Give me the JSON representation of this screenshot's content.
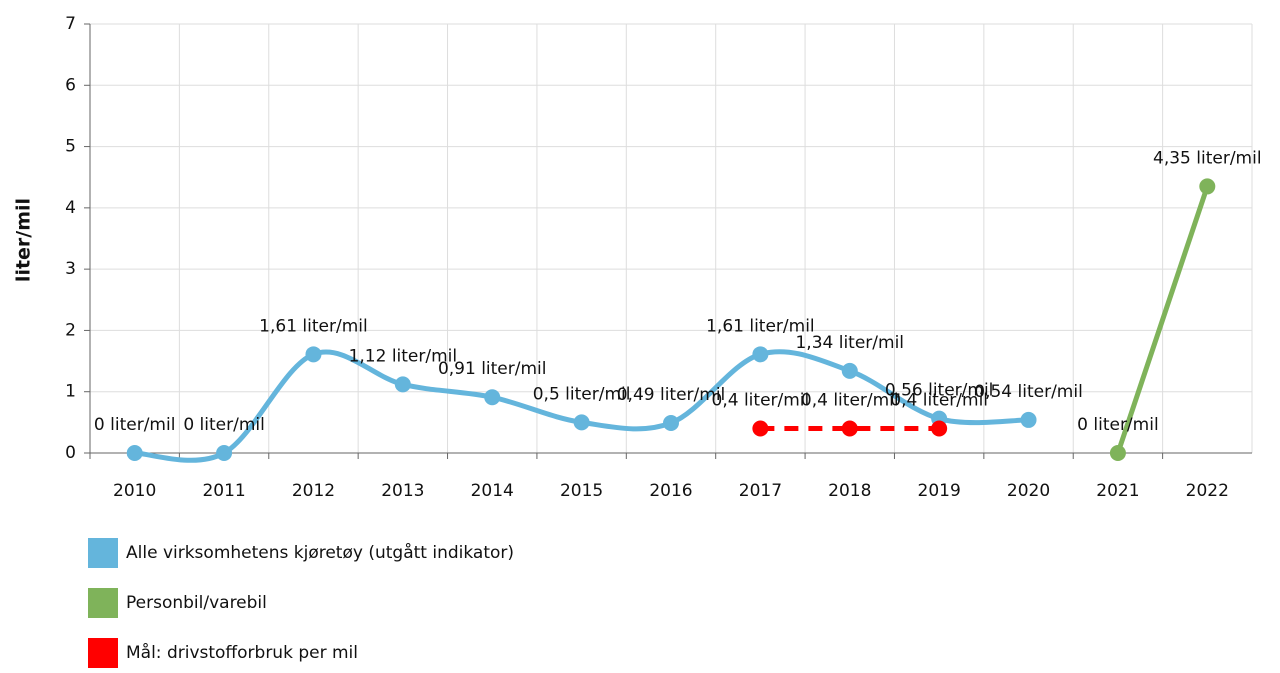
{
  "chart_data": {
    "type": "line",
    "y_label": "liter/mil",
    "categories": [
      "2010",
      "2011",
      "2012",
      "2013",
      "2014",
      "2015",
      "2016",
      "2017",
      "2018",
      "2019",
      "2020",
      "2021",
      "2022"
    ],
    "series": [
      {
        "name": "Alle virksomhetens kjøretøy (utgått indikator)",
        "color": "#64b5dc",
        "smooth": true,
        "dashed": false,
        "values": [
          0,
          0,
          1.61,
          1.12,
          0.91,
          0.5,
          0.49,
          1.61,
          1.34,
          0.56,
          0.54,
          null,
          null
        ],
        "value_labels": [
          "0 liter/mil",
          "0 liter/mil",
          "1,61 liter/mil",
          "1,12 liter/mil",
          "0,91 liter/mil",
          "0,5 liter/mil",
          "0,49 liter/mil",
          "1,61 liter/mil",
          "1,34 liter/mil",
          "0,56 liter/mil",
          "0,54 liter/mil",
          null,
          null
        ]
      },
      {
        "name": "Personbil/varebil",
        "color": "#7fb35a",
        "smooth": false,
        "dashed": false,
        "values": [
          null,
          null,
          null,
          null,
          null,
          null,
          null,
          null,
          null,
          null,
          null,
          0,
          4.35
        ],
        "value_labels": [
          null,
          null,
          null,
          null,
          null,
          null,
          null,
          null,
          null,
          null,
          null,
          "0 liter/mil",
          "4,35 liter/mil"
        ]
      },
      {
        "name": "Mål: drivstofforbruk per mil",
        "color": "#ff0000",
        "smooth": false,
        "dashed": true,
        "values": [
          null,
          null,
          null,
          null,
          null,
          null,
          null,
          0.4,
          0.4,
          0.4,
          null,
          null,
          null
        ],
        "value_labels": [
          null,
          null,
          null,
          null,
          null,
          null,
          null,
          "0,4 liter/mil",
          "0,4 liter/mil",
          "0,4 liter/mil",
          null,
          null,
          null
        ]
      }
    ],
    "ylim": [
      0,
      7
    ],
    "yticks": [
      0,
      1,
      2,
      3,
      4,
      5,
      6,
      7
    ],
    "grid": true
  }
}
